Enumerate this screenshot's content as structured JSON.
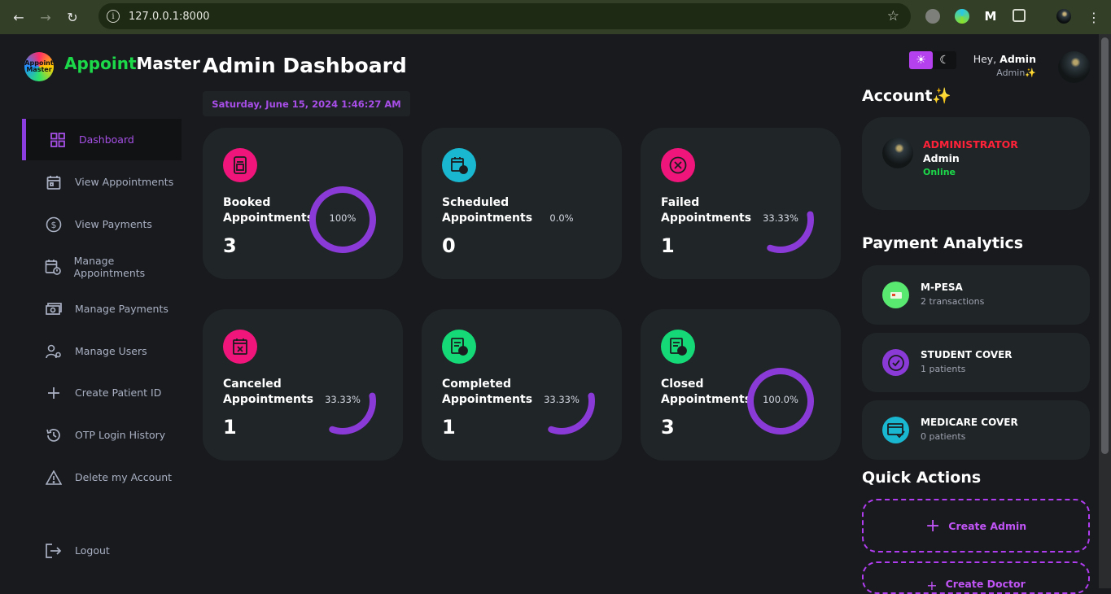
{
  "browser": {
    "url": "127.0.0.1:8000"
  },
  "brand": {
    "part1": "Appoint",
    "part2": "Master",
    "logo_text": "Appoint Master"
  },
  "sidebar": {
    "items": [
      {
        "label": "Dashboard",
        "icon": "grid-icon",
        "active": true
      },
      {
        "label": "View Appointments",
        "icon": "calendar-icon"
      },
      {
        "label": "View Payments",
        "icon": "dollar-icon"
      },
      {
        "label": "Manage Appointments",
        "icon": "calendar-clock-icon"
      },
      {
        "label": "Manage Payments",
        "icon": "money-icon"
      },
      {
        "label": "Manage Users",
        "icon": "user-gear-icon"
      },
      {
        "label": "Create Patient ID",
        "icon": "plus-icon"
      },
      {
        "label": "OTP Login History",
        "icon": "history-icon"
      },
      {
        "label": "Delete my Account",
        "icon": "warning-icon"
      }
    ],
    "logout": "Logout"
  },
  "main": {
    "title": "Admin Dashboard",
    "datetime": "Saturday, June 15, 2024 1:46:27 AM",
    "cards": [
      {
        "label": "Booked Appointments",
        "count": "3",
        "percent_text": "100%",
        "percent": 100,
        "color": "#f0157a"
      },
      {
        "label": "Scheduled Appointments",
        "count": "0",
        "percent_text": "0.0%",
        "percent": 0,
        "color": "#19b8d0"
      },
      {
        "label": "Failed Appointments",
        "count": "1",
        "percent_text": "33.33%",
        "percent": 33.33,
        "color": "#f0157a"
      },
      {
        "label": "Canceled Appointments",
        "count": "1",
        "percent_text": "33.33%",
        "percent": 33.33,
        "color": "#f0157a"
      },
      {
        "label": "Completed Appointments",
        "count": "1",
        "percent_text": "33.33%",
        "percent": 33.33,
        "color": "#15d977"
      },
      {
        "label": "Closed Appointments",
        "count": "3",
        "percent_text": "100.0%",
        "percent": 100,
        "color": "#15d977"
      }
    ],
    "ring_color": "#8a3ad6"
  },
  "header": {
    "hey": "Hey,",
    "user": "Admin",
    "role": "Admin✨"
  },
  "account": {
    "title": "Account✨",
    "role": "ADMINISTRATOR",
    "name": "Admin",
    "status": "Online"
  },
  "payment_analytics": {
    "title": "Payment Analytics",
    "items": [
      {
        "name": "M-PESA",
        "sub": "2 transactions",
        "color": "#59e870"
      },
      {
        "name": "STUDENT COVER",
        "sub": "1 patients",
        "color": "#8a3ad6"
      },
      {
        "name": "MEDICARE COVER",
        "sub": "0 patients",
        "color": "#19b8d0"
      }
    ]
  },
  "quick_actions": {
    "title": "Quick Actions",
    "items": [
      {
        "label": "Create Admin"
      },
      {
        "label": "Create Doctor"
      }
    ]
  }
}
